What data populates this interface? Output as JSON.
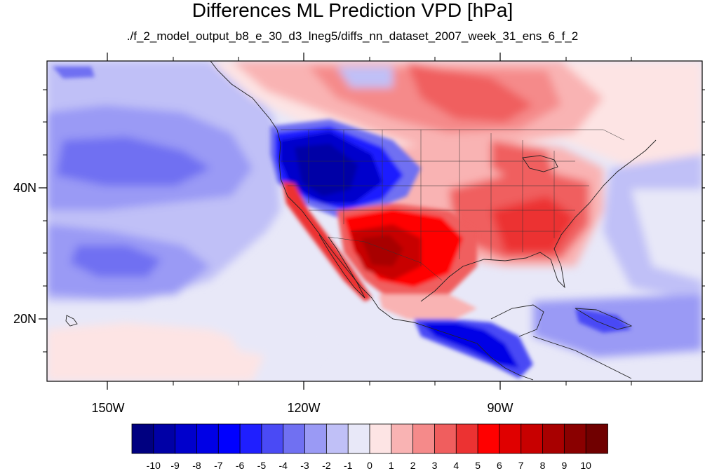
{
  "title": "Differences ML Prediction VPD [hPa]",
  "subtitle": "./f_2_model_output_b8_e_30_d3_lneg5/diffs_nn_dataset_2007_week_31_ens_6_f_2",
  "map": {
    "projection": "cylindrical equidistant",
    "lon_range": [
      -159.3,
      -60
    ],
    "lat_range": [
      10.5,
      59.6
    ],
    "x_ticks": [
      {
        "lon": -150,
        "label": "150W"
      },
      {
        "lon": -120,
        "label": "120W"
      },
      {
        "lon": -90,
        "label": "90W"
      }
    ],
    "y_ticks": [
      {
        "lat": 20,
        "label": "20N"
      },
      {
        "lat": 40,
        "label": "40N"
      }
    ]
  },
  "colorbar": {
    "labels": [
      "-10",
      "-9",
      "-8",
      "-7",
      "-6",
      "-5",
      "-4",
      "-3",
      "-2",
      "-1",
      "0",
      "1",
      "2",
      "3",
      "4",
      "5",
      "6",
      "7",
      "8",
      "9",
      "10"
    ],
    "colors": [
      "#000080",
      "#0000a6",
      "#0000cc",
      "#0000e6",
      "#0000ff",
      "#1f1fff",
      "#4a4af5",
      "#7070f2",
      "#9a9af5",
      "#c0c0f7",
      "#e8e8f8",
      "#fde4e4",
      "#f9b3b3",
      "#f58a8a",
      "#f05e5e",
      "#ec3232",
      "#ff0000",
      "#e00000",
      "#c80000",
      "#a80000",
      "#8a0000",
      "#700000"
    ]
  },
  "regions": [
    {
      "name": "pacific-light-blue",
      "color": "#c0c0f7"
    },
    {
      "name": "pacific-mid-blue",
      "color": "#9a9af5"
    },
    {
      "name": "pacific-deep-blue",
      "color": "#7070f2"
    },
    {
      "name": "northwest-us-dark-blue",
      "color": "#0000cc"
    },
    {
      "name": "southwest-us-dark-red",
      "color": "#c80000"
    },
    {
      "name": "eastern-us-red",
      "color": "#ec3232"
    },
    {
      "name": "canada-light-red",
      "color": "#f9b3b3"
    },
    {
      "name": "southern-mexico-blue",
      "color": "#0000e6"
    }
  ]
}
